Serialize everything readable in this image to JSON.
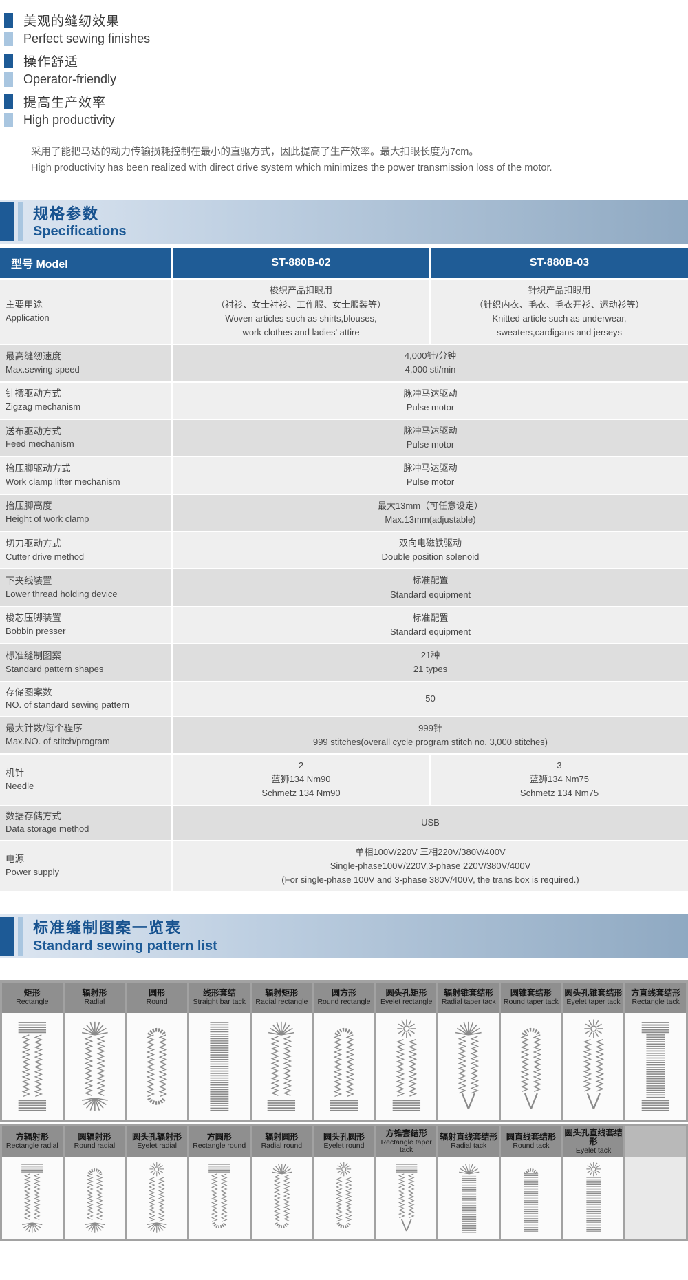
{
  "colors": {
    "accent": "#1d5a96",
    "accent_light": "#a9c6e0",
    "table_header": "#1f5c96",
    "row_odd": "#efefef",
    "row_even": "#dedede",
    "pattern_label_bar": "#8f8f8f",
    "stitch": "#8a8a8a"
  },
  "features": {
    "items": [
      {
        "zh": "美观的缝纫效果",
        "en": "Perfect sewing finishes"
      },
      {
        "zh": "操作舒适",
        "en": "Operator-friendly"
      },
      {
        "zh": "提高生产效率",
        "en": "High productivity"
      }
    ]
  },
  "intro": {
    "zh": "采用了能把马达的动力传输损耗控制在最小的直驱方式，因此提高了生产效率。最大扣眼长度为7cm。",
    "en": "High productivity has been realized with direct drive system which minimizes the power transmission loss of the motor."
  },
  "spec_section": {
    "zh": "规格参数",
    "en": "Specifications"
  },
  "spec_table": {
    "header": {
      "model": "型号 Model",
      "col1": "ST-880B-02",
      "col2": "ST-880B-03"
    },
    "rows": [
      {
        "zh": "主要用途",
        "en": "Application",
        "type": "split",
        "v1": [
          "梭织产品扣眼用",
          "（衬衫、女士衬衫、工作服、女士服装等）",
          "Woven articles such as shirts,blouses,",
          "work clothes and ladies' attire"
        ],
        "v2": [
          "针织产品扣眼用",
          "（针织内衣、毛衣、毛衣开衫、运动衫等）",
          "Knitted article such as underwear,",
          "sweaters,cardigans and jerseys"
        ]
      },
      {
        "zh": "最高缝纫速度",
        "en": "Max.sewing speed",
        "type": "merged",
        "v": [
          "4,000针/分钟",
          "4,000 sti/min"
        ]
      },
      {
        "zh": "针摆驱动方式",
        "en": "Zigzag mechanism",
        "type": "merged",
        "v": [
          "脉冲马达驱动",
          "Pulse motor"
        ]
      },
      {
        "zh": "送布驱动方式",
        "en": "Feed mechanism",
        "type": "merged",
        "v": [
          "脉冲马达驱动",
          "Pulse motor"
        ]
      },
      {
        "zh": "抬压脚驱动方式",
        "en": "Work clamp lifter mechanism",
        "type": "merged",
        "v": [
          "脉冲马达驱动",
          "Pulse motor"
        ]
      },
      {
        "zh": "抬压脚高度",
        "en": "Height of work clamp",
        "type": "merged",
        "v": [
          "最大13mm（可任意设定）",
          "Max.13mm(adjustable)"
        ]
      },
      {
        "zh": "切刀驱动方式",
        "en": "Cutter drive method",
        "type": "merged",
        "v": [
          "双向电磁铁驱动",
          "Double position solenoid"
        ]
      },
      {
        "zh": "下夹线装置",
        "en": "Lower thread holding device",
        "type": "merged",
        "v": [
          "标准配置",
          "Standard equipment"
        ]
      },
      {
        "zh": "梭芯压脚装置",
        "en": "Bobbin presser",
        "type": "merged",
        "v": [
          "标准配置",
          "Standard equipment"
        ]
      },
      {
        "zh": "标准缝制图案",
        "en": "Standard pattern shapes",
        "type": "merged",
        "v": [
          "21种",
          "21 types"
        ]
      },
      {
        "zh": "存储图案数",
        "en": "NO. of standard sewing pattern",
        "type": "merged",
        "v": [
          "50"
        ]
      },
      {
        "zh": "最大针数/每个程序",
        "en": "Max.NO. of stitch/program",
        "type": "merged",
        "v": [
          "999针",
          "999 stitches(overall cycle program stitch no. 3,000 stitches)"
        ]
      },
      {
        "zh": "机针",
        "en": "Needle",
        "type": "split",
        "v1": [
          "2",
          "蓝狮134 Nm90",
          "Schmetz 134 Nm90"
        ],
        "v2": [
          "3",
          "蓝狮134 Nm75",
          "Schmetz 134 Nm75"
        ]
      },
      {
        "zh": "数据存储方式",
        "en": "Data storage method",
        "type": "merged",
        "v": [
          "USB"
        ]
      },
      {
        "zh": "电源",
        "en": "Power supply",
        "type": "merged",
        "v": [
          "单相100V/220V 三相220V/380V/400V",
          "Single-phase100V/220V,3-phase 220V/380V/400V",
          "(For single-phase 100V and 3-phase 380V/400V, the trans box is required.)"
        ]
      }
    ]
  },
  "pattern_section": {
    "zh": "标准缝制图案一览表",
    "en": "Standard sewing pattern list"
  },
  "pattern_list": {
    "row1": [
      {
        "zh": "矩形",
        "en": "Rectangle",
        "body": "legs",
        "top": "bar",
        "bottom": "bar"
      },
      {
        "zh": "辐射形",
        "en": "Radial",
        "body": "legs",
        "top": "radial",
        "bottom": "radial"
      },
      {
        "zh": "圆形",
        "en": "Round",
        "body": "legs",
        "top": "round",
        "bottom": "round"
      },
      {
        "zh": "线形套结",
        "en": "Straight bar tack",
        "body": "ladder",
        "top": "none",
        "bottom": "none"
      },
      {
        "zh": "辐射矩形",
        "en": "Radial rectangle",
        "body": "legs",
        "top": "radial",
        "bottom": "bar"
      },
      {
        "zh": "圆方形",
        "en": "Round rectangle",
        "body": "legs",
        "top": "round",
        "bottom": "bar"
      },
      {
        "zh": "圆头孔矩形",
        "en": "Eyelet rectangle",
        "body": "legs",
        "top": "eyelet",
        "bottom": "bar"
      },
      {
        "zh": "辐射锥套结形",
        "en": "Radial taper tack",
        "body": "legs",
        "top": "radial",
        "bottom": "taper"
      },
      {
        "zh": "圆锥套结形",
        "en": "Round taper tack",
        "body": "legs",
        "top": "round",
        "bottom": "taper"
      },
      {
        "zh": "圆头孔锥套结形",
        "en": "Eyelet taper tack",
        "body": "legs",
        "top": "eyelet",
        "bottom": "taper"
      },
      {
        "zh": "方直线套结形",
        "en": "Rectangle tack",
        "body": "ladder",
        "top": "bar",
        "bottom": "bar"
      }
    ],
    "row2": [
      {
        "zh": "方辐射形",
        "en": "Rectangle radial",
        "body": "legs",
        "top": "bar",
        "bottom": "radial"
      },
      {
        "zh": "圆辐射形",
        "en": "Round radial",
        "body": "legs",
        "top": "round",
        "bottom": "radial"
      },
      {
        "zh": "圆头孔辐射形",
        "en": "Eyelet radial",
        "body": "legs",
        "top": "eyelet",
        "bottom": "radial"
      },
      {
        "zh": "方圆形",
        "en": "Rectangle round",
        "body": "legs",
        "top": "bar",
        "bottom": "round"
      },
      {
        "zh": "辐射圆形",
        "en": "Radial round",
        "body": "legs",
        "top": "radial",
        "bottom": "round"
      },
      {
        "zh": "圆头孔圆形",
        "en": "Eyelet round",
        "body": "legs",
        "top": "eyelet",
        "bottom": "round"
      },
      {
        "zh": "方锥套结形",
        "en": "Rectangle taper tack",
        "body": "legs",
        "top": "bar",
        "bottom": "taper"
      },
      {
        "zh": "辐射直线套结形",
        "en": "Radial tack",
        "body": "ladder",
        "top": "radial",
        "bottom": "none"
      },
      {
        "zh": "圆直线套结形",
        "en": "Round tack",
        "body": "ladder",
        "top": "round",
        "bottom": "none"
      },
      {
        "zh": "圆头孔直线套结形",
        "en": "Eyelet tack",
        "body": "ladder",
        "top": "eyelet",
        "bottom": "none"
      },
      null
    ]
  }
}
